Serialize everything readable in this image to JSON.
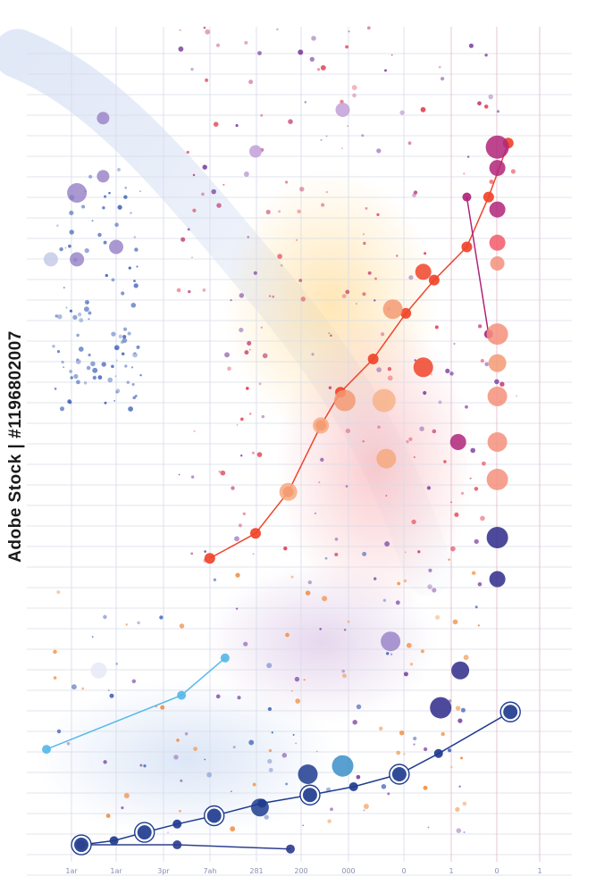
{
  "chart_data": {
    "type": "scatter",
    "title": "",
    "xlabel": "",
    "ylabel": "",
    "grid": true,
    "xlim": [
      0,
      12
    ],
    "ylim": [
      0,
      10
    ],
    "x_tick_labels": [
      "1ar",
      "1ar",
      "3pr",
      "7ah",
      "281",
      "200",
      "000",
      "0",
      "1",
      "0",
      "1"
    ],
    "series": [
      {
        "color": "#f0442a",
        "line": true,
        "x": [
          3.75,
          4.8,
          5.55,
          6.3,
          6.75,
          7.5,
          8.25,
          8.9,
          9.65,
          10.15,
          10.6
        ],
        "y": [
          3.6,
          3.9,
          4.4,
          5.2,
          5.6,
          6.0,
          6.55,
          6.95,
          7.35,
          7.95,
          8.6
        ]
      },
      {
        "color": "#56b9e8",
        "line": true,
        "x": [
          0.0,
          3.1,
          4.1
        ],
        "y": [
          1.3,
          1.95,
          2.4
        ]
      },
      {
        "color": "#1f3c8f",
        "line": true,
        "x": [
          0.8,
          1.55,
          2.25,
          3.0,
          3.85,
          4.95,
          6.05,
          7.05,
          8.1,
          9.0,
          10.65
        ],
        "y": [
          0.15,
          0.2,
          0.3,
          0.4,
          0.5,
          0.65,
          0.75,
          0.85,
          1.0,
          1.25,
          1.75
        ]
      },
      {
        "color": "#2f3f8f",
        "line": true,
        "x": [
          0.8,
          3.0,
          5.6
        ],
        "y": [
          0.15,
          0.15,
          0.1
        ]
      },
      {
        "color": "#b0247a",
        "line": true,
        "x": [
          9.65,
          10.15
        ],
        "y": [
          7.95,
          6.3
        ]
      }
    ],
    "bubbles": [
      {
        "x": 5.55,
        "y": 4.4,
        "r": 10,
        "color": "#f6a97f"
      },
      {
        "x": 6.3,
        "y": 5.2,
        "r": 9,
        "color": "#f6a97f"
      },
      {
        "x": 6.85,
        "y": 5.5,
        "r": 12,
        "color": "#f39a73"
      },
      {
        "x": 7.75,
        "y": 5.5,
        "r": 13,
        "color": "#f7b38a"
      },
      {
        "x": 7.8,
        "y": 4.8,
        "r": 11,
        "color": "#f6a97f"
      },
      {
        "x": 7.95,
        "y": 6.6,
        "r": 11,
        "color": "#f39a73"
      },
      {
        "x": 8.65,
        "y": 5.9,
        "r": 11,
        "color": "#f0442a"
      },
      {
        "x": 8.65,
        "y": 7.05,
        "r": 9,
        "color": "#f0442a"
      },
      {
        "x": 10.35,
        "y": 6.3,
        "r": 12,
        "color": "#f4917c"
      },
      {
        "x": 10.35,
        "y": 5.95,
        "r": 10,
        "color": "#f39a73"
      },
      {
        "x": 10.35,
        "y": 5.55,
        "r": 11,
        "color": "#f4917c"
      },
      {
        "x": 10.35,
        "y": 5.0,
        "r": 11,
        "color": "#f4917c"
      },
      {
        "x": 10.35,
        "y": 4.55,
        "r": 12,
        "color": "#f4917c"
      },
      {
        "x": 10.35,
        "y": 7.15,
        "r": 8,
        "color": "#f4917c"
      },
      {
        "x": 10.35,
        "y": 7.4,
        "r": 9,
        "color": "#f25a6a"
      },
      {
        "x": 10.35,
        "y": 7.8,
        "r": 9,
        "color": "#b0247a"
      },
      {
        "x": 10.35,
        "y": 8.3,
        "r": 9,
        "color": "#b0247a"
      },
      {
        "x": 10.35,
        "y": 8.55,
        "r": 13,
        "color": "#b0247a"
      },
      {
        "x": 9.45,
        "y": 5.0,
        "r": 9,
        "color": "#b0247a"
      },
      {
        "x": 10.35,
        "y": 3.85,
        "r": 12,
        "color": "#2f2a8a"
      },
      {
        "x": 10.35,
        "y": 3.35,
        "r": 9,
        "color": "#2f2a8a"
      },
      {
        "x": 9.05,
        "y": 1.8,
        "r": 12,
        "color": "#2f2a8a"
      },
      {
        "x": 9.5,
        "y": 2.25,
        "r": 10,
        "color": "#2f2a8a"
      },
      {
        "x": 7.9,
        "y": 2.6,
        "r": 11,
        "color": "#9b86c9"
      },
      {
        "x": 6.8,
        "y": 1.1,
        "r": 12,
        "color": "#3a8fc7"
      },
      {
        "x": 6.0,
        "y": 1.0,
        "r": 11,
        "color": "#1f3c8f"
      },
      {
        "x": 4.9,
        "y": 0.6,
        "r": 10,
        "color": "#1f3c8f"
      },
      {
        "x": 1.2,
        "y": 2.25,
        "r": 9,
        "color": "#e6e9f6"
      },
      {
        "x": 0.7,
        "y": 8.0,
        "r": 11,
        "color": "#9b86c9"
      },
      {
        "x": 1.6,
        "y": 7.35,
        "r": 8,
        "color": "#9b86c9"
      },
      {
        "x": 0.7,
        "y": 7.2,
        "r": 8,
        "color": "#9b86c9"
      },
      {
        "x": 0.1,
        "y": 7.2,
        "r": 8,
        "color": "#c6cbe8"
      },
      {
        "x": 1.3,
        "y": 8.2,
        "r": 7,
        "color": "#9b86c9"
      },
      {
        "x": 1.3,
        "y": 8.9,
        "r": 7,
        "color": "#9b86c9"
      },
      {
        "x": 6.8,
        "y": 9.0,
        "r": 8,
        "color": "#c2a0d8"
      },
      {
        "x": 4.8,
        "y": 8.5,
        "r": 7,
        "color": "#c2a0d8"
      }
    ]
  },
  "watermark": {
    "text": "Adobe Stock | #1196802007"
  }
}
